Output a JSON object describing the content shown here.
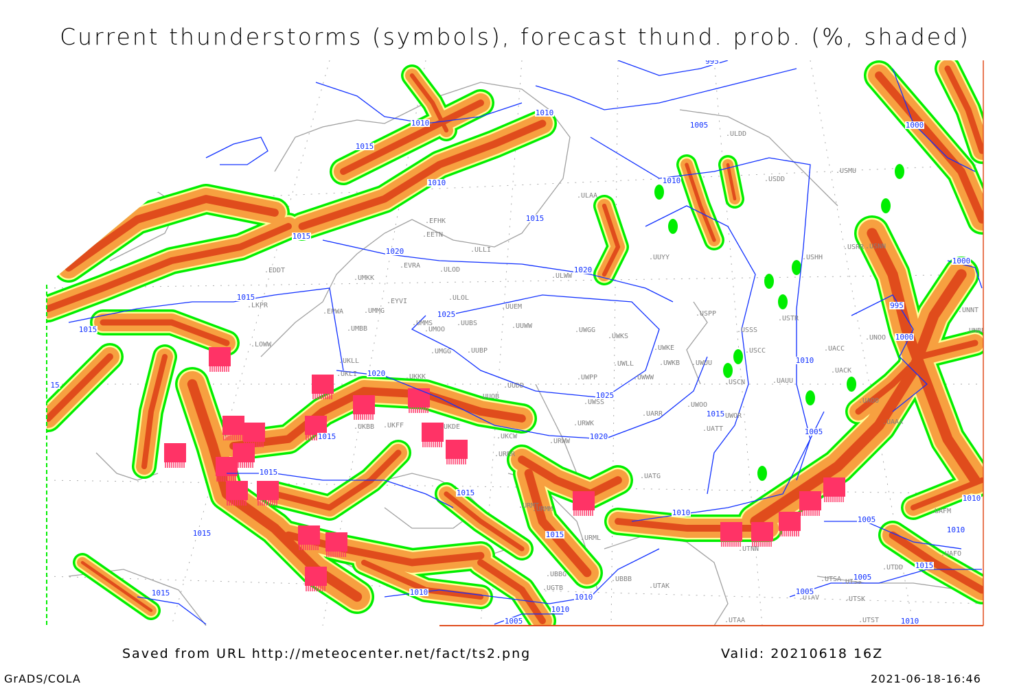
{
  "title": "Current thunderstorms (symbols), forecast thund. prob. (%, shaded)",
  "footer": {
    "saved_from": "Saved from URL http://meteocenter.net/fact/ts2.png",
    "valid": "Valid: 20210618 16Z",
    "software": "GrADS/COLA",
    "timestamp": "2021-06-18-16:46"
  },
  "colors": {
    "prob_low": "#00ee00",
    "prob_mid": "#ffff99",
    "prob_high": "#f7a040",
    "prob_very_high": "#e04c1c",
    "thunderstorm_symbol": "#ff3366",
    "isobar": "#1030ff",
    "coastline": "#a0a0a0"
  },
  "isobar_labels": [
    "995",
    "1010",
    "1010",
    "1005",
    "1000",
    "1015",
    "1010",
    "1010",
    "1015",
    "1015",
    "1020",
    "1020",
    "1000",
    "1015",
    "995",
    "1015",
    "1000",
    "1025",
    "1010",
    "1020",
    "1025",
    "1015",
    "1020",
    "1015",
    "1005",
    "1015",
    "1015",
    "1010",
    "1010",
    "1005",
    "1010",
    "1015",
    "1015",
    "1015",
    "1005",
    "1005",
    "1015",
    "1010",
    "1010",
    "1010",
    "1005",
    "1010",
    "15"
  ],
  "stations": [
    "EFHK",
    "EETN",
    "ULLI",
    "EVRA",
    "ULOD",
    "UMKK",
    "EYVI",
    "ULOL",
    "EPWA",
    "UMMG",
    "UUEM",
    "UMMS",
    "UUBS",
    "UMOO",
    "UUWW",
    "UWGG",
    "UWKS",
    "UMBB",
    "UMGG",
    "UUBP",
    "UWKE",
    "UWKB",
    "UWUU",
    "UWLL",
    "UKLL",
    "UKLI",
    "UWPP",
    "UWWW",
    "UUDD",
    "UUOB",
    "UWSS",
    "UWOO",
    "UARR",
    "UWOR",
    "URWK",
    "UATT",
    "URWW",
    "UKCW",
    "UATG",
    "URRR",
    "UKKK",
    "EDDT",
    "LKPR",
    "LOWW",
    "ULDD",
    "USDD",
    "USMU",
    "USRR",
    "USNN",
    "USHH",
    "USTR",
    "USSS",
    "USCC",
    "UACC",
    "UACK",
    "USCN",
    "UAUU",
    "UAOO",
    "USPP",
    "UUYY",
    "UNNT",
    "UNBB",
    "UNOO",
    "UAAA",
    "UTNN",
    "UTAK",
    "UBBB",
    "URML",
    "UTAA",
    "UTSA",
    "UTSS",
    "UTAV",
    "UTST",
    "UTSK",
    "UAFM",
    "UAFO",
    "UTDD",
    "ULAA",
    "ULWW",
    "UKFF",
    "URMT",
    "URMM",
    "UGTB",
    "UBBG",
    "UKDE",
    "UKBB"
  ]
}
